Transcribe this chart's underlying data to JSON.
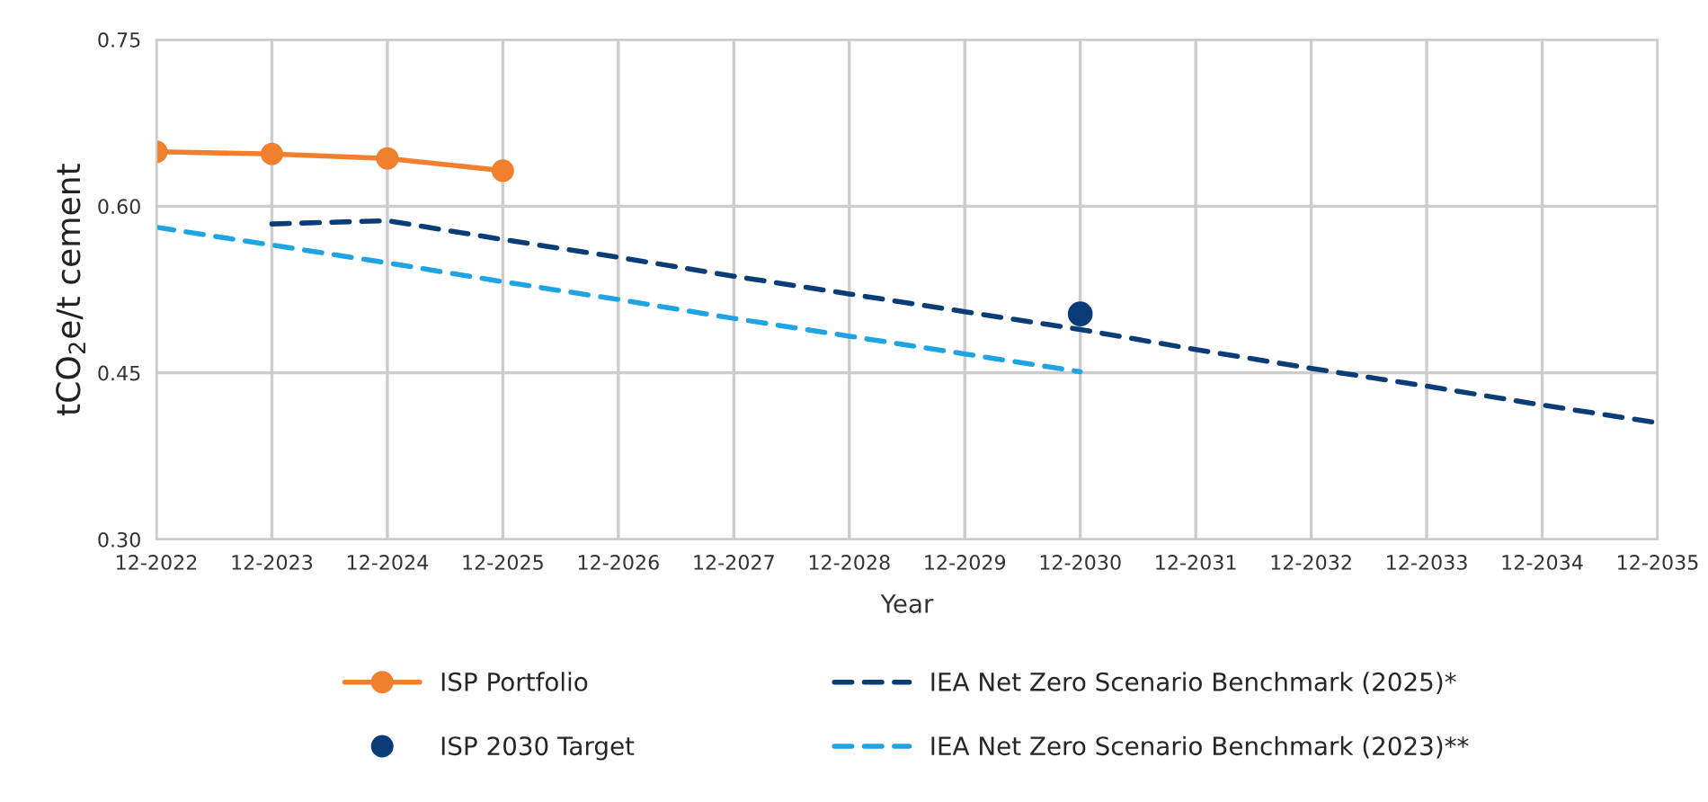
{
  "chart_data": {
    "type": "line",
    "xlabel": "Year",
    "ylabel": "tCO$_{2}$e/t cement",
    "categories": [
      "12-2022",
      "12-2023",
      "12-2024",
      "12-2025",
      "12-2026",
      "12-2027",
      "12-2028",
      "12-2029",
      "12-2030",
      "12-2031",
      "12-2032",
      "12-2033",
      "12-2034",
      "12-2035"
    ],
    "series": [
      {
        "name": "ISP Portfolio",
        "color": "#f0802e",
        "marker": "circle",
        "line_style": "solid",
        "values": [
          0.649,
          0.647,
          0.643,
          0.632,
          null,
          null,
          null,
          null,
          null,
          null,
          null,
          null,
          null,
          null
        ]
      },
      {
        "name": "ISP 2030 Target",
        "type": "scatter",
        "color": "#0a3d78",
        "marker": "circle",
        "values": [
          null,
          null,
          null,
          null,
          null,
          null,
          null,
          null,
          0.503,
          null,
          null,
          null,
          null,
          null
        ]
      },
      {
        "name": "IEA Net Zero Scenario Benchmark (2025)*",
        "color": "#0a3d78",
        "marker": "none",
        "line_style": "dashed",
        "values": [
          null,
          0.584,
          0.587,
          0.57,
          0.554,
          0.537,
          0.521,
          0.505,
          0.489,
          0.471,
          0.454,
          0.438,
          0.421,
          0.405
        ]
      },
      {
        "name": "IEA Net Zero Scenario Benchmark (2023)**",
        "color": "#1ea3e3",
        "marker": "none",
        "line_style": "dashed",
        "values": [
          0.581,
          0.565,
          0.549,
          0.532,
          0.516,
          0.499,
          0.483,
          0.467,
          0.451,
          null,
          null,
          null,
          null,
          null
        ]
      }
    ],
    "ylim": [
      0.3,
      0.75
    ],
    "yticks": [
      {
        "value": 0.3,
        "label": "0.30"
      },
      {
        "value": 0.45,
        "label": "0.45"
      },
      {
        "value": 0.6,
        "label": "0.60"
      },
      {
        "value": 0.75,
        "label": "0.75"
      }
    ],
    "grid": true,
    "legend": "bottom"
  }
}
